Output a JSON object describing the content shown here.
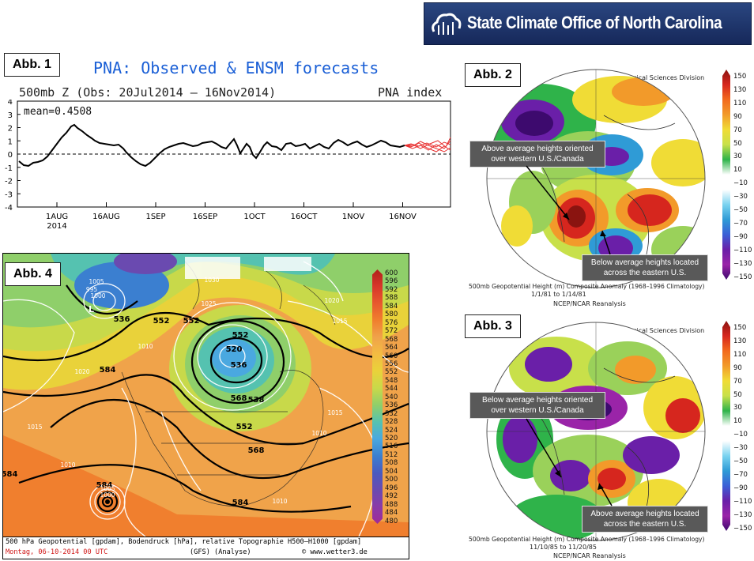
{
  "header": {
    "org_name": "State Climate Office of North Carolina",
    "logo_icon": "sco-cloud-logo-icon",
    "bg_color": "#1b2f5e"
  },
  "panel1": {
    "tag": "Abb. 1",
    "title": "PNA: Observed & ENSM forecasts",
    "subtitle": "500mb Z (Obs: 20Jul2014 – 16Nov2014)",
    "index_label": "PNA index",
    "mean_label": "mean=0.4508",
    "y_ticks": [
      "4",
      "3",
      "2",
      "1",
      "0",
      "-1",
      "-2",
      "-3",
      "-4"
    ],
    "x_ticks": [
      "1AUG",
      "16AUG",
      "1SEP",
      "16SEP",
      "1OCT",
      "16OCT",
      "1NOV",
      "16NOV"
    ],
    "x_year": "2014",
    "title_color": "#1a5fd6"
  },
  "panel2": {
    "tag": "Abb. 2",
    "credit": "NOAA/ESRL Physical Sciences Division",
    "callout_top": "Above average heights oriented over western U.S./Canada",
    "callout_bottom": "Below average heights located across the eastern U.S.",
    "caption_line1": "500mb Geopotential Height (m) Composite Anomaly (1968–1996 Climatology)",
    "caption_line2": "1/1/81 to 1/14/81",
    "caption_line3": "NCEP/NCAR Reanalysis"
  },
  "panel3": {
    "tag": "Abb. 3",
    "credit": "NOAA/ESRL Physical Sciences Division",
    "callout_top": "Below average heights oriented over western U.S./Canada",
    "callout_bottom": "Above average heights located across the eastern U.S.",
    "caption_line1": "500mb Geopotential Height (m) Composite Anomaly (1968–1996 Climatology)",
    "caption_line2": "11/10/85 to 11/20/85",
    "caption_line3": "NCEP/NCAR Reanalysis"
  },
  "anomaly_colorbar": {
    "labels": [
      "150",
      "130",
      "110",
      "90",
      "70",
      "50",
      "30",
      "10",
      "−10",
      "−30",
      "−50",
      "−70",
      "−90",
      "−110",
      "−130",
      "−150"
    ]
  },
  "panel4": {
    "tag": "Abb. 4",
    "footer_line1": "500 hPa Geopotential [gpdam], Bodendruck [hPa], relative Topographie H500–H1000 [gpdam]",
    "footer_date": "Montag, 06-10-2014  00 UTC",
    "footer_model": "(GFS)  (Analyse)",
    "footer_site": "© www.wetter3.de",
    "colorbar_labels": [
      "600",
      "596",
      "592",
      "588",
      "584",
      "580",
      "576",
      "572",
      "568",
      "564",
      "560",
      "556",
      "552",
      "548",
      "544",
      "540",
      "536",
      "532",
      "528",
      "524",
      "520",
      "516",
      "512",
      "508",
      "504",
      "500",
      "496",
      "492",
      "488",
      "484",
      "480"
    ],
    "contour_labels": [
      "552",
      "536",
      "520",
      "568",
      "584",
      "552",
      "552",
      "536",
      "552",
      "538",
      "584",
      "584",
      "584",
      "568"
    ],
    "pressure_labels": [
      "1005",
      "995",
      "1000",
      "1030",
      "1025",
      "1020",
      "1015",
      "1010",
      "1010",
      "1015",
      "1020",
      "1015",
      "1010",
      "1005",
      "1000",
      "1010"
    ]
  }
}
